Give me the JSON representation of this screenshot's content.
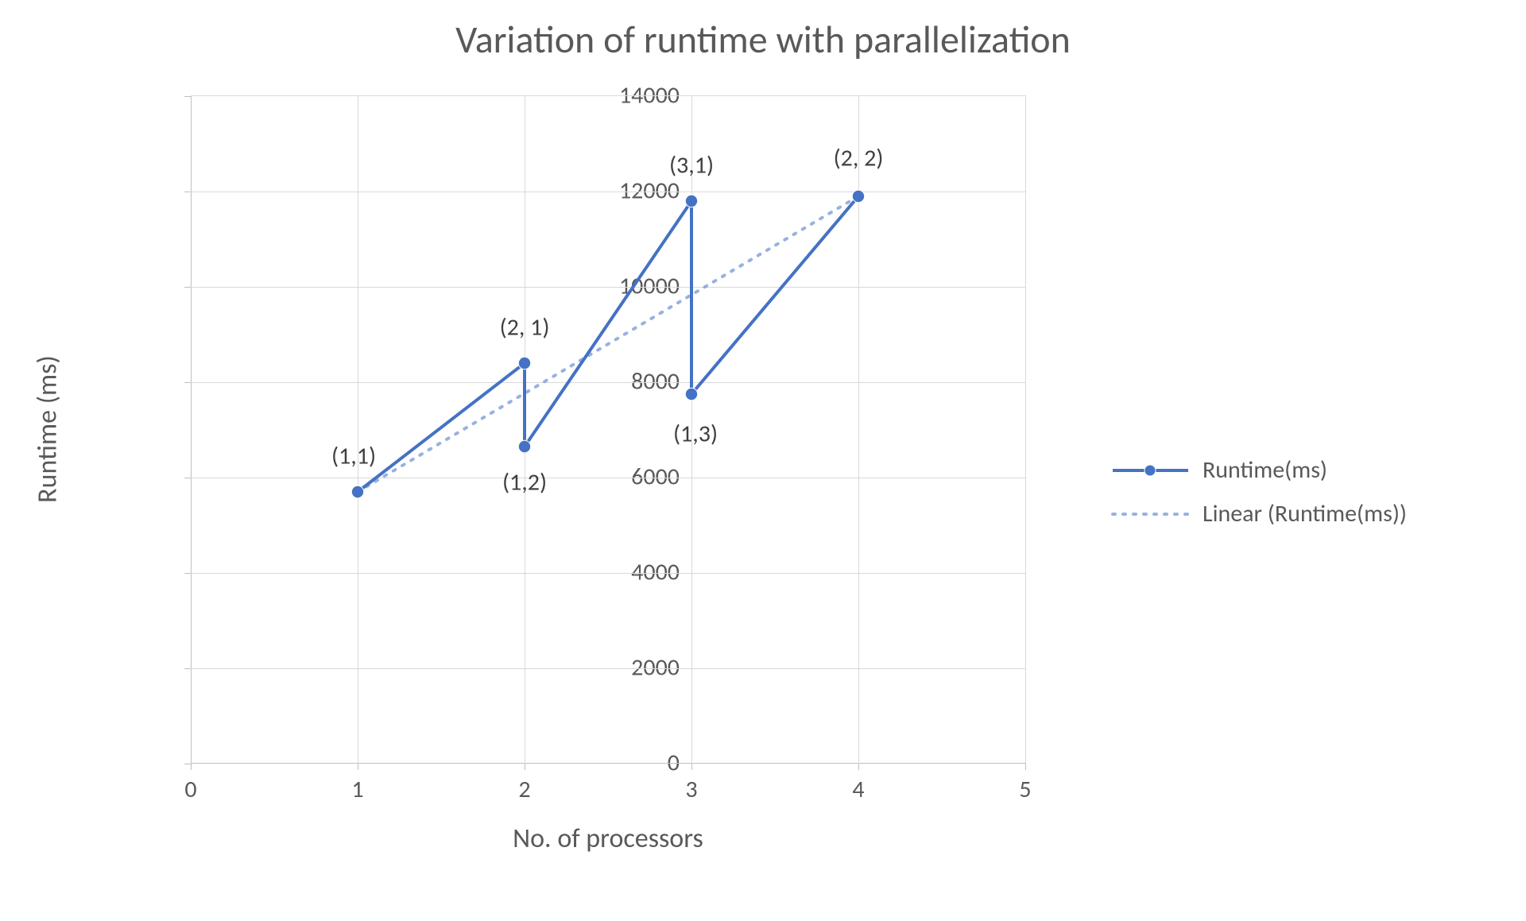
{
  "chart": {
    "type": "line",
    "title": "Variation of runtime with parallelization",
    "title_fontsize": 48,
    "xaxis": {
      "title": "No. of processors",
      "title_fontsize": 34,
      "min": 0,
      "max": 5,
      "tick_step": 1,
      "ticks": [
        0,
        1,
        2,
        3,
        4,
        5
      ],
      "tick_fontsize": 30,
      "tick_color": "#595959"
    },
    "yaxis": {
      "title": "Runtime (ms)",
      "title_fontsize": 34,
      "min": 0,
      "max": 14000,
      "tick_step": 2000,
      "ticks": [
        0,
        2000,
        4000,
        6000,
        8000,
        10000,
        12000,
        14000
      ],
      "tick_fontsize": 30,
      "tick_color": "#595959"
    },
    "grid_color": "#d9d9d9",
    "axis_line_color": "#bfbfbf",
    "background_color": "#ffffff",
    "series": {
      "main": {
        "name": "Runtime(ms)",
        "color": "#4472c4",
        "line_width": 4,
        "marker": "circle",
        "marker_size": 10,
        "marker_fill": "#4472c4",
        "marker_stroke": "#ffffff",
        "points": [
          {
            "x": 1,
            "y": 5700,
            "label": "(1,1)",
            "label_dx": -5,
            "label_dy": -45
          },
          {
            "x": 2,
            "y": 8400,
            "label": "(2, 1)",
            "label_dx": 0,
            "label_dy": -45
          },
          {
            "x": 2,
            "y": 6650,
            "label": "(1,2)",
            "label_dx": 0,
            "label_dy": 45
          },
          {
            "x": 3,
            "y": 11800,
            "label": "(3,1)",
            "label_dx": 0,
            "label_dy": -45
          },
          {
            "x": 3,
            "y": 7750,
            "label": "(1,3)",
            "label_dx": 5,
            "label_dy": 50
          },
          {
            "x": 4,
            "y": 11900,
            "label": "(2, 2)",
            "label_dx": 0,
            "label_dy": -48
          }
        ]
      },
      "trend": {
        "name": "Linear (Runtime(ms))",
        "color": "#4472c4",
        "opacity": 0.55,
        "line_width": 4,
        "dash": "3,10",
        "start": {
          "x": 1,
          "y": 5700
        },
        "end": {
          "x": 4,
          "y": 11900
        }
      }
    },
    "legend": {
      "position": "right",
      "fontsize": 30,
      "items": [
        {
          "key": "main",
          "label": "Runtime(ms)"
        },
        {
          "key": "trend",
          "label": "Linear (Runtime(ms))"
        }
      ]
    }
  }
}
